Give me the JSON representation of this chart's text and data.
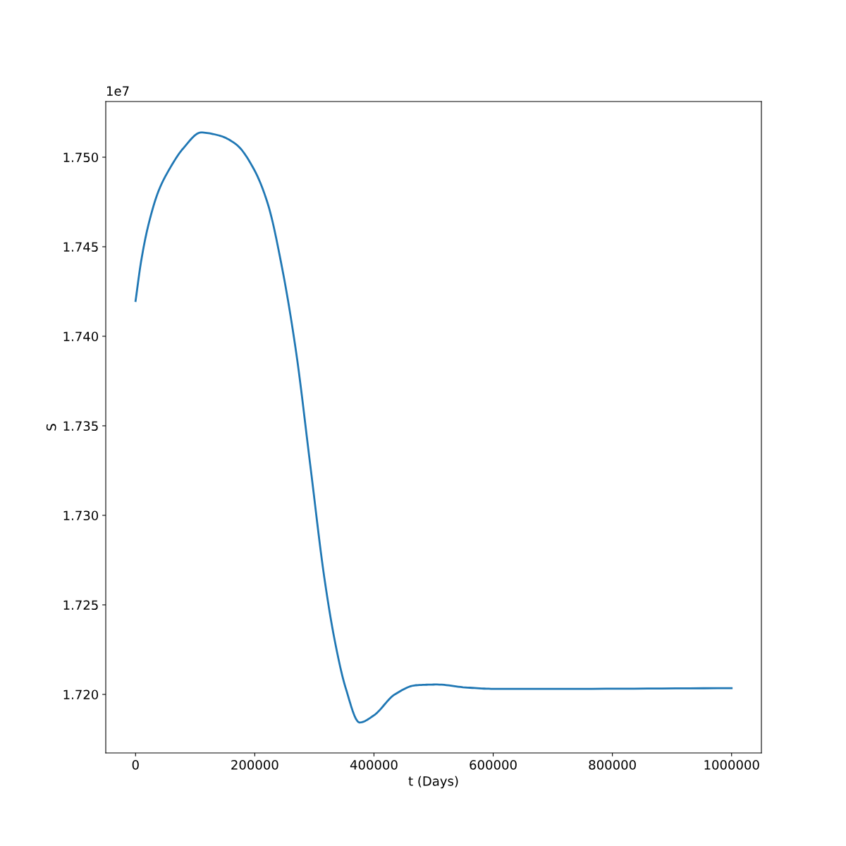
{
  "chart_data": {
    "type": "line",
    "xlabel": "t (Days)",
    "ylabel": "S",
    "annotations": [
      "1e7"
    ],
    "x": [
      0,
      9456,
      21277,
      39007,
      56738,
      80378,
      109929,
      139480,
      169031,
      198582,
      222222,
      245863,
      269504,
      293144,
      316785,
      334515,
      352246,
      375887,
      399527,
      434988,
      470449,
      505910,
      553191,
      600473,
      718676,
      1000000
    ],
    "series": [
      {
        "color": "#1f77b4",
        "values": [
          1.74197,
          1.74421,
          1.74618,
          1.74815,
          1.74933,
          1.75051,
          1.75138,
          1.75122,
          1.75071,
          1.74933,
          1.74736,
          1.74382,
          1.73909,
          1.7328,
          1.7265,
          1.72295,
          1.72039,
          1.71843,
          1.71882,
          1.72,
          1.72051,
          1.72055,
          1.72039,
          1.72031,
          1.72031,
          1.72035
        ]
      }
    ],
    "xlim": [
      -50000,
      1050000
    ],
    "ylim": [
      1.71673,
      1.75311
    ],
    "xticks": [
      0,
      200000,
      400000,
      600000,
      800000,
      1000000
    ],
    "yticks": [
      {
        "value": 1.72,
        "label": "1.720"
      },
      {
        "value": 1.725,
        "label": "1.725"
      },
      {
        "value": 1.73,
        "label": "1.730"
      },
      {
        "value": 1.735,
        "label": "1.735"
      },
      {
        "value": 1.74,
        "label": "1.740"
      },
      {
        "value": 1.745,
        "label": "1.745"
      },
      {
        "value": 1.75,
        "label": "1.750"
      }
    ],
    "grid": false,
    "legend": false,
    "marker": "none",
    "line_style": "solid"
  }
}
